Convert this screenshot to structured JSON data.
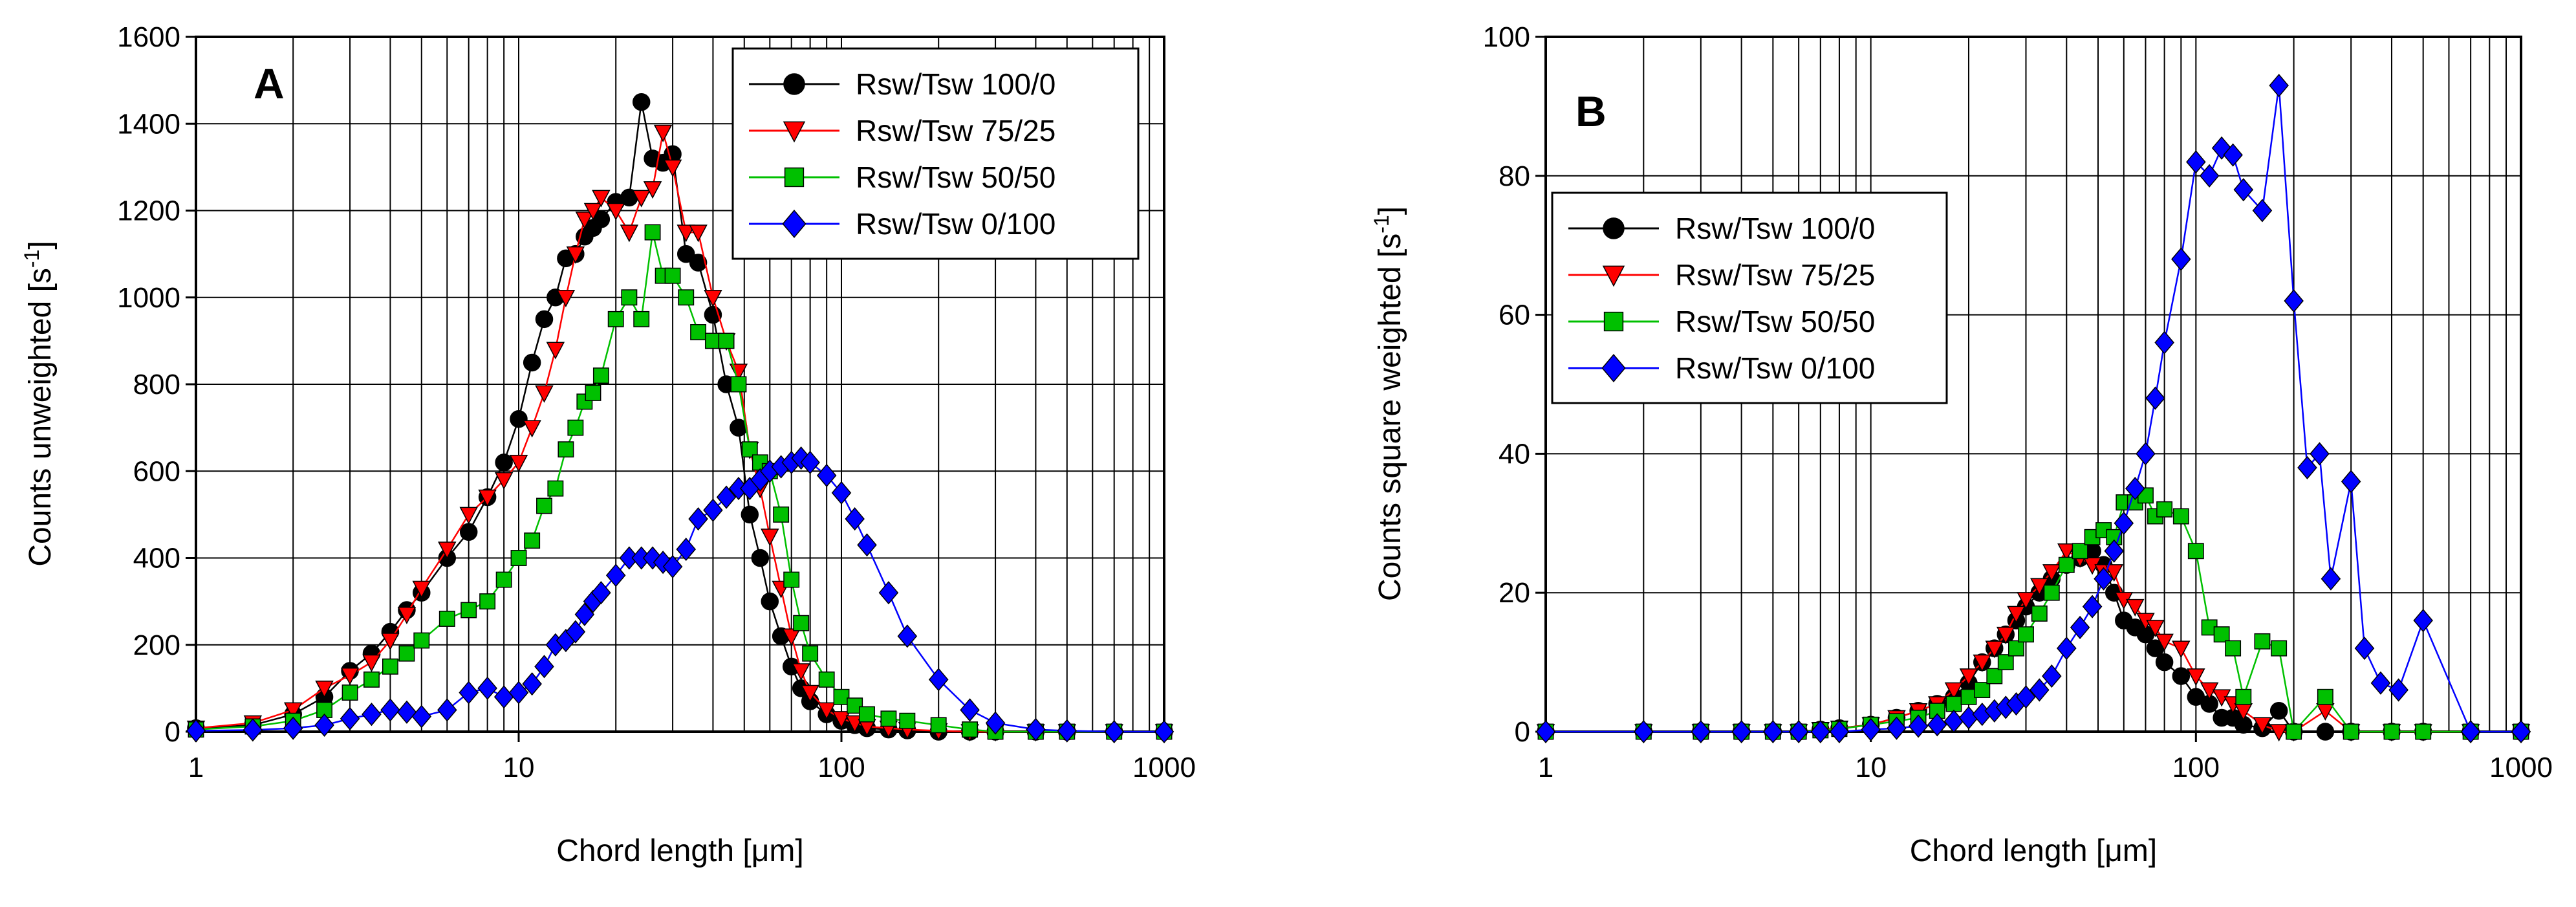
{
  "colors": {
    "series_100_0": "#000000",
    "series_75_25": "#ff0000",
    "series_50_50": "#00c000",
    "series_0_100": "#0000ff"
  },
  "chart_data": [
    {
      "type": "scatter",
      "panel_label": "A",
      "xlabel_prefix": "Chord length [",
      "xlabel_mu": "μ",
      "xlabel_suffix": "m]",
      "ylabel_prefix": "Counts unweighted [s",
      "ylabel_sup": "-1",
      "ylabel_suffix": "]",
      "xscale": "log",
      "xlim": [
        1,
        1000
      ],
      "ylim": [
        0,
        1600
      ],
      "x_ticks": [
        1,
        10,
        100,
        1000
      ],
      "x_tick_labels": [
        "1",
        "10",
        "100",
        "1000"
      ],
      "y_ticks": [
        0,
        200,
        400,
        600,
        800,
        1000,
        1200,
        1400,
        1600
      ],
      "y_tick_labels": [
        "0",
        "200",
        "400",
        "600",
        "800",
        "1000",
        "1200",
        "1400",
        "1600"
      ],
      "grid": true,
      "legend_position": "top-right",
      "series": [
        {
          "name": "Rsw/Tsw 100/0",
          "marker": "circle",
          "color": "#000000",
          "x": [
            1,
            1.5,
            2,
            2.5,
            3,
            3.5,
            4,
            4.5,
            5,
            6,
            7,
            8,
            9,
            10,
            11,
            12,
            13,
            14,
            15,
            16,
            17,
            18,
            20,
            22,
            24,
            26,
            28,
            30,
            33,
            36,
            40,
            44,
            48,
            52,
            56,
            60,
            65,
            70,
            75,
            80,
            90,
            100,
            110,
            120,
            140,
            160,
            200,
            250,
            300,
            400,
            500,
            700,
            1000
          ],
          "y": [
            8,
            15,
            40,
            80,
            140,
            180,
            230,
            280,
            320,
            400,
            460,
            540,
            620,
            720,
            850,
            950,
            1000,
            1090,
            1100,
            1140,
            1160,
            1180,
            1220,
            1230,
            1450,
            1320,
            1310,
            1330,
            1100,
            1080,
            960,
            800,
            700,
            500,
            400,
            300,
            220,
            150,
            100,
            70,
            40,
            25,
            15,
            8,
            5,
            3,
            0,
            0,
            0,
            0,
            0,
            0,
            0
          ]
        },
        {
          "name": "Rsw/Tsw 75/25",
          "marker": "triangle-down",
          "color": "#ff0000",
          "x": [
            1,
            1.5,
            2,
            2.5,
            3,
            3.5,
            4,
            4.5,
            5,
            6,
            7,
            8,
            9,
            10,
            11,
            12,
            13,
            14,
            15,
            16,
            17,
            18,
            20,
            22,
            24,
            26,
            28,
            30,
            33,
            36,
            40,
            44,
            48,
            52,
            56,
            60,
            65,
            70,
            75,
            80,
            90,
            100,
            110,
            120,
            140,
            160,
            200,
            250,
            300,
            400,
            500,
            700,
            1000
          ],
          "y": [
            8,
            20,
            50,
            100,
            130,
            160,
            210,
            270,
            330,
            420,
            500,
            540,
            580,
            620,
            700,
            780,
            880,
            1000,
            1100,
            1180,
            1200,
            1230,
            1200,
            1150,
            1230,
            1250,
            1380,
            1300,
            1150,
            1150,
            1000,
            900,
            830,
            650,
            560,
            450,
            330,
            220,
            140,
            90,
            50,
            30,
            20,
            12,
            8,
            5,
            2,
            0,
            0,
            0,
            0,
            0,
            0
          ]
        },
        {
          "name": "Rsw/Tsw 50/50",
          "marker": "square",
          "color": "#00c000",
          "x": [
            1,
            1.5,
            2,
            2.5,
            3,
            3.5,
            4,
            4.5,
            5,
            6,
            7,
            8,
            9,
            10,
            11,
            12,
            13,
            14,
            15,
            16,
            17,
            18,
            20,
            22,
            24,
            26,
            28,
            30,
            33,
            36,
            40,
            44,
            48,
            52,
            56,
            60,
            65,
            70,
            75,
            80,
            90,
            100,
            110,
            120,
            140,
            160,
            200,
            250,
            300,
            400,
            500,
            700,
            1000
          ],
          "y": [
            5,
            12,
            25,
            50,
            90,
            120,
            150,
            180,
            210,
            260,
            280,
            300,
            350,
            400,
            440,
            520,
            560,
            650,
            700,
            760,
            780,
            820,
            950,
            1000,
            950,
            1150,
            1050,
            1050,
            1000,
            920,
            900,
            900,
            800,
            650,
            620,
            600,
            500,
            350,
            250,
            180,
            120,
            80,
            60,
            40,
            30,
            25,
            15,
            5,
            0,
            0,
            0,
            0,
            0
          ]
        },
        {
          "name": "Rsw/Tsw 0/100",
          "marker": "diamond",
          "color": "#0000ff",
          "x": [
            1,
            1.5,
            2,
            2.5,
            3,
            3.5,
            4,
            4.5,
            5,
            6,
            7,
            8,
            9,
            10,
            11,
            12,
            13,
            14,
            15,
            16,
            17,
            18,
            20,
            22,
            24,
            26,
            28,
            30,
            33,
            36,
            40,
            44,
            48,
            52,
            56,
            60,
            65,
            70,
            75,
            80,
            90,
            100,
            110,
            120,
            140,
            160,
            200,
            250,
            300,
            400,
            500,
            700,
            1000
          ],
          "y": [
            2,
            4,
            8,
            15,
            30,
            40,
            50,
            45,
            35,
            50,
            90,
            100,
            80,
            90,
            110,
            150,
            200,
            210,
            230,
            270,
            300,
            320,
            360,
            400,
            400,
            400,
            390,
            380,
            420,
            490,
            510,
            540,
            560,
            560,
            580,
            600,
            610,
            620,
            630,
            620,
            590,
            550,
            490,
            430,
            320,
            220,
            120,
            50,
            20,
            5,
            2,
            0,
            0
          ]
        }
      ]
    },
    {
      "type": "scatter",
      "panel_label": "B",
      "xlabel_prefix": "Chord length [",
      "xlabel_mu": "μ",
      "xlabel_suffix": "m]",
      "ylabel_prefix": "Counts square weighted [s",
      "ylabel_sup": "-1",
      "ylabel_suffix": "]",
      "xscale": "log",
      "xlim": [
        1,
        1000
      ],
      "ylim": [
        0,
        100
      ],
      "x_ticks": [
        1,
        10,
        100,
        1000
      ],
      "x_tick_labels": [
        "1",
        "10",
        "100",
        "1000"
      ],
      "y_ticks": [
        0,
        20,
        40,
        60,
        80,
        100
      ],
      "y_tick_labels": [
        "0",
        "20",
        "40",
        "60",
        "80",
        "100"
      ],
      "grid": true,
      "legend_position": "top-left",
      "series": [
        {
          "name": "Rsw/Tsw 100/0",
          "marker": "circle",
          "color": "#000000",
          "x": [
            1,
            2,
            3,
            4,
            5,
            6,
            7,
            8,
            10,
            12,
            14,
            16,
            18,
            20,
            22,
            24,
            26,
            28,
            30,
            33,
            36,
            40,
            44,
            48,
            52,
            56,
            60,
            65,
            70,
            75,
            80,
            90,
            100,
            110,
            120,
            130,
            140,
            160,
            180,
            200,
            250,
            300,
            400,
            500,
            700,
            1000
          ],
          "y": [
            0,
            0,
            0,
            0,
            0,
            0,
            0.3,
            0.5,
            1,
            2,
            3,
            4,
            5,
            7,
            10,
            12,
            14,
            16,
            18,
            20,
            22,
            24,
            25,
            26,
            24,
            20,
            16,
            15,
            14,
            12,
            10,
            8,
            5,
            4,
            2,
            2,
            1,
            0.5,
            3,
            0,
            0,
            0,
            0,
            0,
            0,
            0
          ]
        },
        {
          "name": "Rsw/Tsw 75/25",
          "marker": "triangle-down",
          "color": "#ff0000",
          "x": [
            1,
            2,
            3,
            4,
            5,
            6,
            7,
            8,
            10,
            12,
            14,
            16,
            18,
            20,
            22,
            24,
            26,
            28,
            30,
            33,
            36,
            40,
            44,
            48,
            52,
            56,
            60,
            65,
            70,
            75,
            80,
            90,
            100,
            110,
            120,
            130,
            140,
            160,
            180,
            200,
            250,
            300,
            400,
            500,
            700,
            1000
          ],
          "y": [
            0,
            0,
            0,
            0,
            0,
            0,
            0.3,
            0.5,
            1,
            2,
            3,
            4,
            6,
            8,
            10,
            12,
            14,
            17,
            19,
            21,
            23,
            26,
            25,
            24,
            23,
            23,
            19,
            18,
            16,
            15,
            13,
            12,
            8,
            6,
            5,
            4,
            3,
            1,
            0,
            0,
            3,
            0,
            0,
            0,
            0,
            0
          ]
        },
        {
          "name": "Rsw/Tsw 50/50",
          "marker": "square",
          "color": "#00c000",
          "x": [
            1,
            2,
            3,
            4,
            5,
            6,
            7,
            8,
            10,
            12,
            14,
            16,
            18,
            20,
            22,
            24,
            26,
            28,
            30,
            33,
            36,
            40,
            44,
            48,
            52,
            56,
            60,
            65,
            70,
            75,
            80,
            90,
            100,
            110,
            120,
            130,
            140,
            160,
            180,
            200,
            250,
            300,
            400,
            500,
            700,
            1000
          ],
          "y": [
            0,
            0,
            0,
            0,
            0,
            0,
            0.2,
            0.4,
            1,
            1.5,
            2,
            3,
            4,
            5,
            6,
            8,
            10,
            12,
            14,
            17,
            20,
            24,
            26,
            28,
            29,
            28,
            33,
            33,
            34,
            31,
            32,
            31,
            26,
            15,
            14,
            12,
            5,
            13,
            12,
            0,
            5,
            0,
            0,
            0,
            0,
            0
          ]
        },
        {
          "name": "Rsw/Tsw 0/100",
          "marker": "diamond",
          "color": "#0000ff",
          "x": [
            1,
            2,
            3,
            4,
            5,
            6,
            7,
            8,
            10,
            12,
            14,
            16,
            18,
            20,
            22,
            24,
            26,
            28,
            30,
            33,
            36,
            40,
            44,
            48,
            52,
            56,
            60,
            65,
            70,
            75,
            80,
            90,
            100,
            110,
            120,
            130,
            140,
            160,
            180,
            200,
            220,
            240,
            260,
            300,
            330,
            370,
            420,
            500,
            700,
            1000
          ],
          "y": [
            0,
            0,
            0,
            0,
            0,
            0,
            0,
            0,
            0.3,
            0.5,
            0.8,
            1,
            1.5,
            2,
            2.5,
            3,
            3.5,
            4,
            5,
            6,
            8,
            12,
            15,
            18,
            22,
            26,
            30,
            35,
            40,
            48,
            56,
            68,
            82,
            80,
            84,
            83,
            78,
            75,
            93,
            62,
            38,
            40,
            22,
            36,
            12,
            7,
            6,
            16,
            0,
            0
          ]
        }
      ]
    }
  ]
}
